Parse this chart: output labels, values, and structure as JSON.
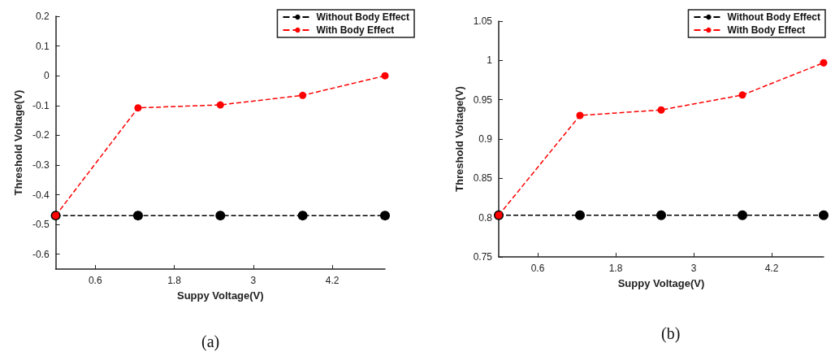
{
  "chart_data": [
    {
      "type": "line",
      "xlabel": "Suppy Voltage(V)",
      "ylabel": "Threshold Voltage(V)",
      "annotations": [
        "(a)"
      ],
      "x": [
        0,
        1.25,
        2.5,
        3.75,
        5
      ],
      "xlim": [
        0,
        5
      ],
      "xticks": [
        0.6,
        1.8,
        3,
        4.2
      ],
      "ylim": [
        -0.65,
        0.2
      ],
      "yticks": [
        -0.6,
        -0.5,
        -0.4,
        -0.3,
        -0.2,
        -0.1,
        0,
        0.1,
        0.2
      ],
      "legend": "top right",
      "marker": "circle",
      "line_style": "dashed",
      "grid": false,
      "series": [
        {
          "name": "Without Body Effect",
          "color": "#000000",
          "values": [
            -0.47,
            -0.47,
            -0.47,
            -0.47,
            -0.47
          ]
        },
        {
          "name": "With Body Effect",
          "color": "#ff0000",
          "values": [
            -0.47,
            -0.108,
            -0.098,
            -0.066,
            0
          ]
        }
      ]
    },
    {
      "type": "line",
      "xlabel": "Suppy Voltage(V)",
      "ylabel": "Threshold Voltage(V)",
      "annotations": [
        "(b)"
      ],
      "x": [
        0,
        1.25,
        2.5,
        3.75,
        5
      ],
      "xlim": [
        0,
        5
      ],
      "xticks": [
        0.6,
        1.8,
        3,
        4.2
      ],
      "ylim": [
        0.75,
        1.05
      ],
      "yticks": [
        0.75,
        0.8,
        0.85,
        0.9,
        0.95,
        1,
        1.05
      ],
      "legend": "top right",
      "marker": "circle",
      "line_style": "dashed",
      "grid": false,
      "series": [
        {
          "name": "Without Body Effect",
          "color": "#000000",
          "values": [
            0.803,
            0.803,
            0.803,
            0.803,
            0.803
          ]
        },
        {
          "name": "With Body Effect",
          "color": "#ff0000",
          "values": [
            0.803,
            0.93,
            0.937,
            0.956,
            0.997
          ]
        }
      ]
    }
  ]
}
